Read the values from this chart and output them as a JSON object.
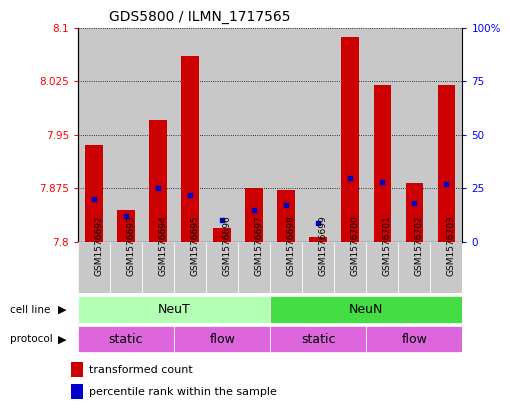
{
  "title": "GDS5800 / ILMN_1717565",
  "samples": [
    "GSM1576692",
    "GSM1576693",
    "GSM1576694",
    "GSM1576695",
    "GSM1576696",
    "GSM1576697",
    "GSM1576698",
    "GSM1576699",
    "GSM1576700",
    "GSM1576701",
    "GSM1576702",
    "GSM1576703"
  ],
  "red_values": [
    7.935,
    7.845,
    7.97,
    8.06,
    7.82,
    7.875,
    7.873,
    7.807,
    8.087,
    8.02,
    7.882,
    8.02
  ],
  "blue_percentiles": [
    20,
    12,
    25,
    22,
    10,
    15,
    17,
    9,
    30,
    28,
    18,
    27
  ],
  "ymin": 7.8,
  "ymax": 8.1,
  "y_ticks": [
    7.8,
    7.875,
    7.95,
    8.025,
    8.1
  ],
  "y_tick_labels": [
    "7.8",
    "7.875",
    "7.95",
    "8.025",
    "8.1"
  ],
  "right_yticks": [
    0,
    25,
    50,
    75,
    100
  ],
  "right_yticklabels": [
    "0",
    "25",
    "50",
    "75",
    "100%"
  ],
  "cell_line_colors": [
    "#b3ffb3",
    "#44dd44"
  ],
  "protocol_color": "#dd66dd",
  "bar_color": "#cc0000",
  "blue_color": "#0000cc",
  "sample_bg": "#c8c8c8"
}
